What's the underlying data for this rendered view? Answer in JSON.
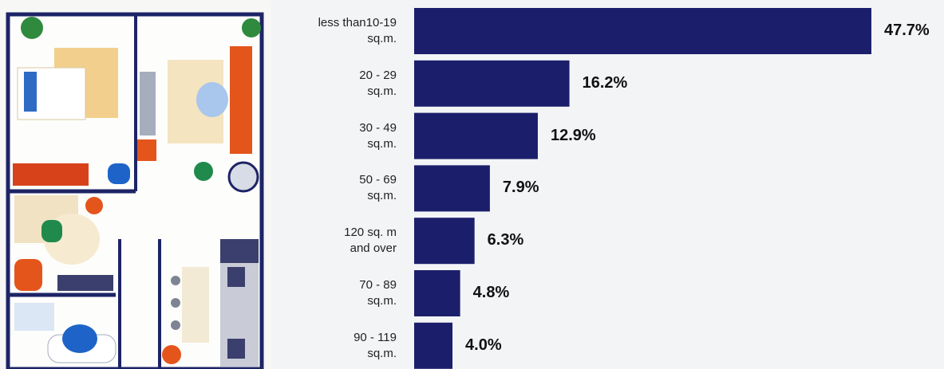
{
  "chart_data": {
    "type": "hbar",
    "categories": [
      "less than10-19\nsq.m.",
      "20 - 29\nsq.m.",
      "30 - 49\nsq.m.",
      "50 - 69\nsq.m.",
      "120 sq. m\nand over",
      "70 - 89\nsq.m.",
      "90 - 119\nsq.m."
    ],
    "values": [
      47.7,
      16.2,
      12.9,
      7.9,
      6.3,
      4.8,
      4.0
    ],
    "value_labels": [
      "47.7%",
      "16.2%",
      "12.9%",
      "7.9%",
      "6.3%",
      "4.8%",
      "4.0%"
    ],
    "color": "#1b1f6b"
  }
}
